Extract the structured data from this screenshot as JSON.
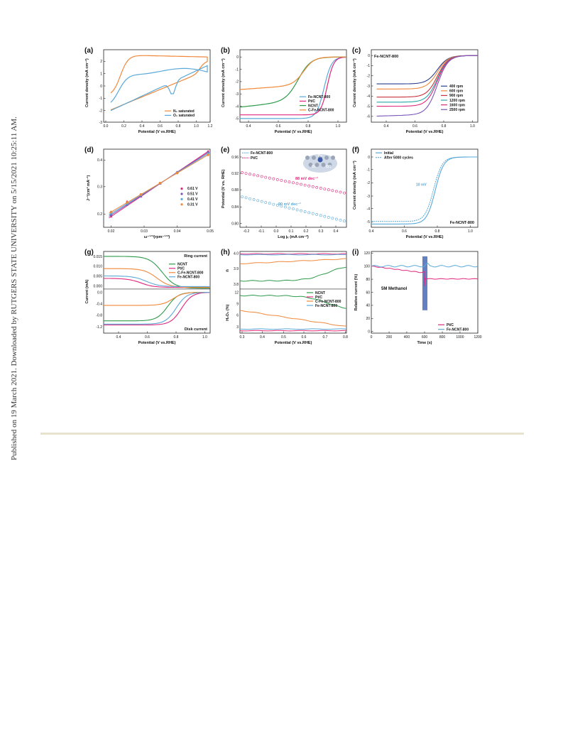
{
  "sidebar_text": "Published on 19 March 2021. Downloaded by RUTGERS STATE UNIVERSITY on 5/15/2021 10:25:11 AM.",
  "colors": {
    "orange": "#f0883a",
    "blue": "#5aa9d8",
    "green": "#2e9a4a",
    "magenta": "#e0287c",
    "purple": "#7a57b8",
    "red": "#c8323c",
    "navy": "#2a3f8f",
    "teal": "#2aa8a8",
    "band": "#4a68b8"
  },
  "panels": [
    {
      "tag": "(a)",
      "ylabel": "Current density (mA cm⁻²)",
      "xlabel": "Potential (V vs.RHE)",
      "xticks": [
        "0.0",
        "0.2",
        "0.4",
        "0.6",
        "0.8",
        "1.0",
        "1.2"
      ],
      "yticks": [
        "2",
        "1",
        "0",
        "-1",
        "-2",
        "-3"
      ],
      "legend": [
        "N₂ saturated",
        "O₂ saturated"
      ]
    },
    {
      "tag": "(b)",
      "ylabel": "Current density (mA cm⁻²)",
      "xlabel": "Potential (V vs.RHE)",
      "xticks": [
        "0.4",
        "0.6",
        "0.8",
        "1.0"
      ],
      "yticks": [
        "0",
        "-1",
        "-2",
        "-3",
        "-4",
        "-5"
      ],
      "legend": [
        "Fe-NCNT-800",
        "Pt/C",
        "NCNT",
        "C-Fe-NCNT-800"
      ]
    },
    {
      "tag": "(c)",
      "label": "Fe-NCNT-800",
      "ylabel": "Current density (mA cm⁻²)",
      "xlabel": "Potential (V vs.RHE)",
      "xticks": [
        "0.4",
        "0.6",
        "0.8",
        "1.0"
      ],
      "yticks": [
        "0",
        "-1",
        "-2",
        "-3",
        "-4",
        "-5",
        "-6"
      ],
      "legend": [
        "400 rpm",
        "600 rpm",
        "900 rpm",
        "1200 rpm",
        "1600 rpm",
        "2500 rpm"
      ]
    },
    {
      "tag": "(d)",
      "ylabel": "J⁻¹(cm² mA⁻¹)",
      "xlabel": "ω⁻¹ᐟ²(rpm⁻¹ᐟ²)",
      "xticks": [
        "0.02",
        "0.03",
        "0.04",
        "0.05"
      ],
      "yticks": [
        "0.4",
        "0.3",
        "0.2"
      ],
      "legend": [
        "0.61 V",
        "0.51 V",
        "0.41 V",
        "0.31 V"
      ]
    },
    {
      "tag": "(e)",
      "ylabel": "Potential (V vs. RHE)",
      "xlabel": "Log jₖ (mA cm⁻²)",
      "xticks": [
        "-0.2",
        "-0.1",
        "0.0",
        "0.1",
        "0.2",
        "0.3",
        "0.4"
      ],
      "yticks": [
        "0.96",
        "0.92",
        "0.88",
        "0.84",
        "0.80"
      ],
      "legend": [
        "Fe-NCNT-800",
        "Pt/C"
      ],
      "slopes": [
        "88 mV dec⁻¹",
        "90 mV dec⁻¹"
      ],
      "inset": {
        "metal": "Fe",
        "o2": "O₂",
        "oh": "OH"
      }
    },
    {
      "tag": "(f)",
      "label": "Fe-NCNT-800",
      "ylabel": "Current density (mA cm⁻²)",
      "xlabel": "Potential (V vs.RHE)",
      "xticks": [
        "0.4",
        "0.6",
        "0.8",
        "1.0"
      ],
      "yticks": [
        "0",
        "-1",
        "-2",
        "-3",
        "-4",
        "-5"
      ],
      "legend": [
        "Initial",
        "After 5000 cycles"
      ],
      "shift": "10 mV"
    },
    {
      "tag": "(g)",
      "ylabel": "Current (mA)",
      "xlabel": "Potential (V vs.RHE)",
      "xticks": [
        "0.4",
        "0.6",
        "0.8",
        "1.0"
      ],
      "yticks_top": [
        "0.015",
        "0.010",
        "0.005",
        "0.000"
      ],
      "yticks_bottom": [
        "0.0",
        "-0.4",
        "-0.8",
        "-1.2"
      ],
      "legend": [
        "NCNT",
        "Pt/C",
        "C-Fe-NCNT-800",
        "Fe-NCNT-800"
      ],
      "top_label": "Ring current",
      "bottom_label": "Disk current"
    },
    {
      "tag": "(h)",
      "ylabel_top": "n",
      "ylabel_bottom": "H₂O₂ (%)",
      "xlabel": "Potential (V vs.RHE)",
      "xticks": [
        "0.3",
        "0.4",
        "0.5",
        "0.6",
        "0.7",
        "0.8"
      ],
      "yticks_top": [
        "4.0",
        "3.9",
        "3.8"
      ],
      "yticks_bottom": [
        "12",
        "9",
        "6",
        "3"
      ],
      "legend": [
        "NCNT",
        "Pt/C",
        "C-Fe-NCNT-800",
        "Fe-NCNT-800"
      ]
    },
    {
      "tag": "(i)",
      "ylabel": "Relative current (%)",
      "xlabel": "Time (s)",
      "xticks": [
        "0",
        "200",
        "400",
        "600",
        "800",
        "1000",
        "1200"
      ],
      "yticks": [
        "120",
        "100",
        "80",
        "60",
        "40",
        "20",
        "0"
      ],
      "legend": [
        "Pt/C",
        "Fe-NCNT-800"
      ],
      "annotation": "5M Methanol"
    }
  ]
}
